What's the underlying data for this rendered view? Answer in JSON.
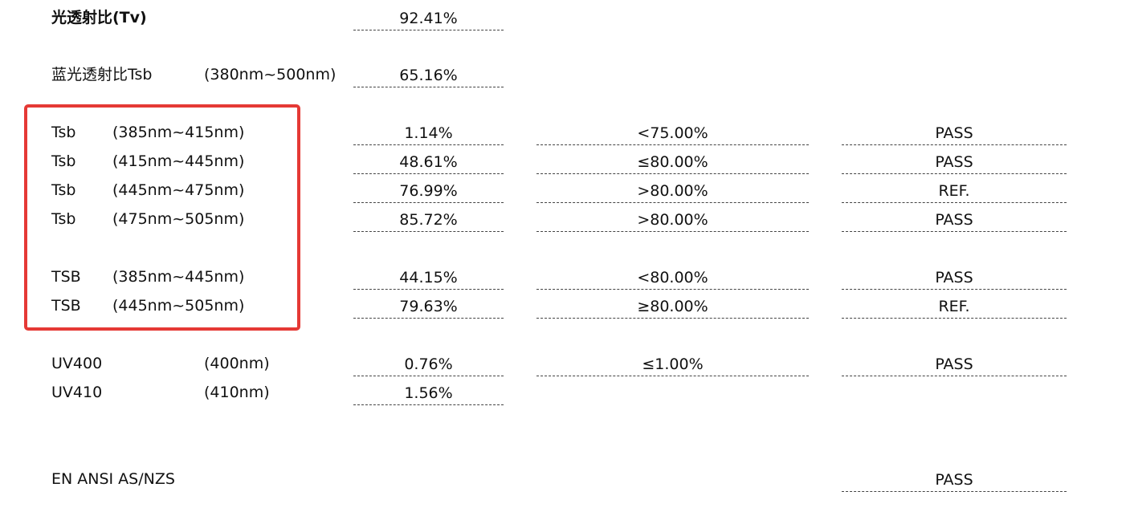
{
  "rows": [
    {
      "label": "光透射比(Tv)",
      "value": "92.41%"
    },
    {
      "label": "蓝光透射比Tsb",
      "range": "(380nm~500nm)",
      "value": "65.16%"
    },
    {
      "label": "Tsb",
      "range": "(385nm~415nm)",
      "value": "1.14%",
      "criterion": "<75.00%",
      "result": "PASS"
    },
    {
      "label": "Tsb",
      "range": "(415nm~445nm)",
      "value": "48.61%",
      "criterion": "≤80.00%",
      "result": "PASS"
    },
    {
      "label": "Tsb",
      "range": "(445nm~475nm)",
      "value": "76.99%",
      "criterion": ">80.00%",
      "result": "REF."
    },
    {
      "label": "Tsb",
      "range": "(475nm~505nm)",
      "value": "85.72%",
      "criterion": ">80.00%",
      "result": "PASS"
    },
    {
      "label": "TSB",
      "range": "(385nm~445nm)",
      "value": "44.15%",
      "criterion": "<80.00%",
      "result": "PASS"
    },
    {
      "label": "TSB",
      "range": "(445nm~505nm)",
      "value": "79.63%",
      "criterion": "≥80.00%",
      "result": "REF."
    },
    {
      "label": "UV400",
      "range": "(400nm)",
      "value": "0.76%",
      "criterion": "≤1.00%",
      "result": "PASS"
    },
    {
      "label": "UV410",
      "range": "(410nm)",
      "value": "1.56%"
    },
    {
      "label": "EN ANSI AS/NZS",
      "result": "PASS"
    }
  ]
}
